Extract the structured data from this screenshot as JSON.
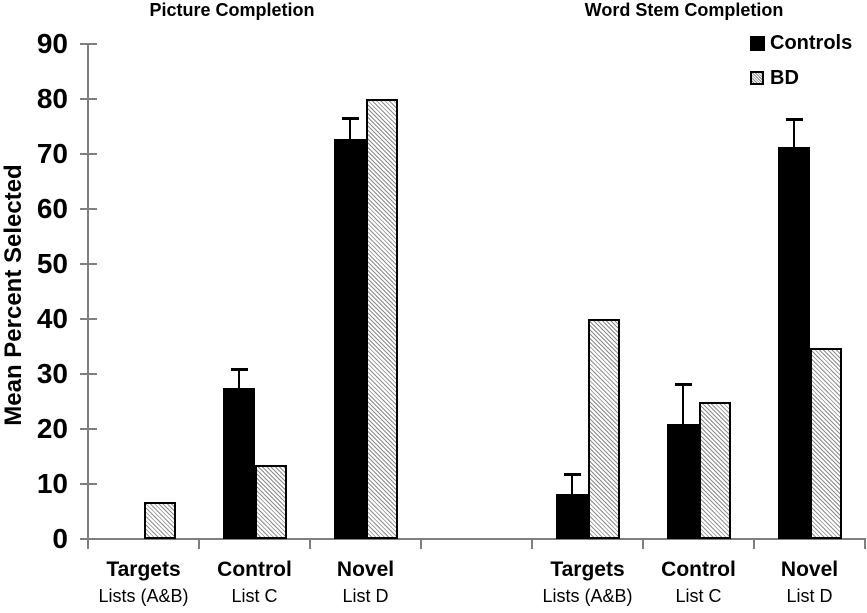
{
  "chart_data": {
    "type": "bar",
    "ylabel": "Mean Percent Selected",
    "ylim": [
      0,
      90
    ],
    "yticks": [
      0,
      10,
      20,
      30,
      40,
      50,
      60,
      70,
      80,
      90
    ],
    "grid": false,
    "legend_position": "top-right",
    "legend": [
      {
        "label": "Controls",
        "style": "solid-black"
      },
      {
        "label": "BD",
        "style": "hatched"
      }
    ],
    "colors": {
      "controls_bar": "#000000",
      "hatch_line": "#8c8c8c",
      "axis": "#7f7f7f",
      "text": "#000000"
    },
    "panels": [
      {
        "title": "Picture Completion",
        "categories": [
          {
            "label": "Targets",
            "sublabel": "Lists (A&B)"
          },
          {
            "label": "Control",
            "sublabel": "List C"
          },
          {
            "label": "Novel",
            "sublabel": "List D"
          }
        ],
        "series": [
          {
            "name": "Controls",
            "values": [
              0,
              27.5,
              72.8
            ],
            "errors": [
              null,
              3.3,
              3.5
            ]
          },
          {
            "name": "BD",
            "values": [
              6.8,
              13.5,
              80
            ],
            "errors": [
              null,
              null,
              null
            ]
          }
        ]
      },
      {
        "title": "Word Stem Completion",
        "categories": [
          {
            "label": "Targets",
            "sublabel": "Lists (A&B)"
          },
          {
            "label": "Control",
            "sublabel": "List C"
          },
          {
            "label": "Novel",
            "sublabel": "List D"
          }
        ],
        "series": [
          {
            "name": "Controls",
            "values": [
              8.2,
              21,
              71.2
            ],
            "errors": [
              3.5,
              7,
              5
            ]
          },
          {
            "name": "BD",
            "values": [
              40,
              25,
              34.8
            ],
            "errors": [
              null,
              null,
              null
            ]
          }
        ]
      }
    ]
  }
}
